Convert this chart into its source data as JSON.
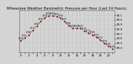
{
  "title": "Milwaukee Weather Barometric Pressure per Hour (Last 24 Hours)",
  "hours": [
    0,
    1,
    2,
    3,
    4,
    5,
    6,
    7,
    8,
    9,
    10,
    11,
    12,
    13,
    14,
    15,
    16,
    17,
    18,
    19,
    20,
    21,
    22,
    23
  ],
  "pressure": [
    29.56,
    29.61,
    29.68,
    29.77,
    29.87,
    29.97,
    30.04,
    30.09,
    30.09,
    30.07,
    30.04,
    29.97,
    29.88,
    29.82,
    29.82,
    29.82,
    29.76,
    29.72,
    29.68,
    29.63,
    29.57,
    29.5,
    29.44,
    29.38
  ],
  "line_color": "#ff0000",
  "marker_color": "#000000",
  "bg_color": "#d4d4d4",
  "grid_color": "#aaaaaa",
  "ylim": [
    29.3,
    30.2
  ],
  "ytick_labels": [
    "29.4",
    "29.5",
    "29.6",
    "29.7",
    "29.8",
    "29.9",
    "30.0",
    "30.1"
  ],
  "ytick_vals": [
    29.4,
    29.5,
    29.6,
    29.7,
    29.8,
    29.9,
    30.0,
    30.1
  ],
  "title_fontsize": 3.8,
  "tick_fontsize": 3.0,
  "annot_fontsize": 2.0
}
